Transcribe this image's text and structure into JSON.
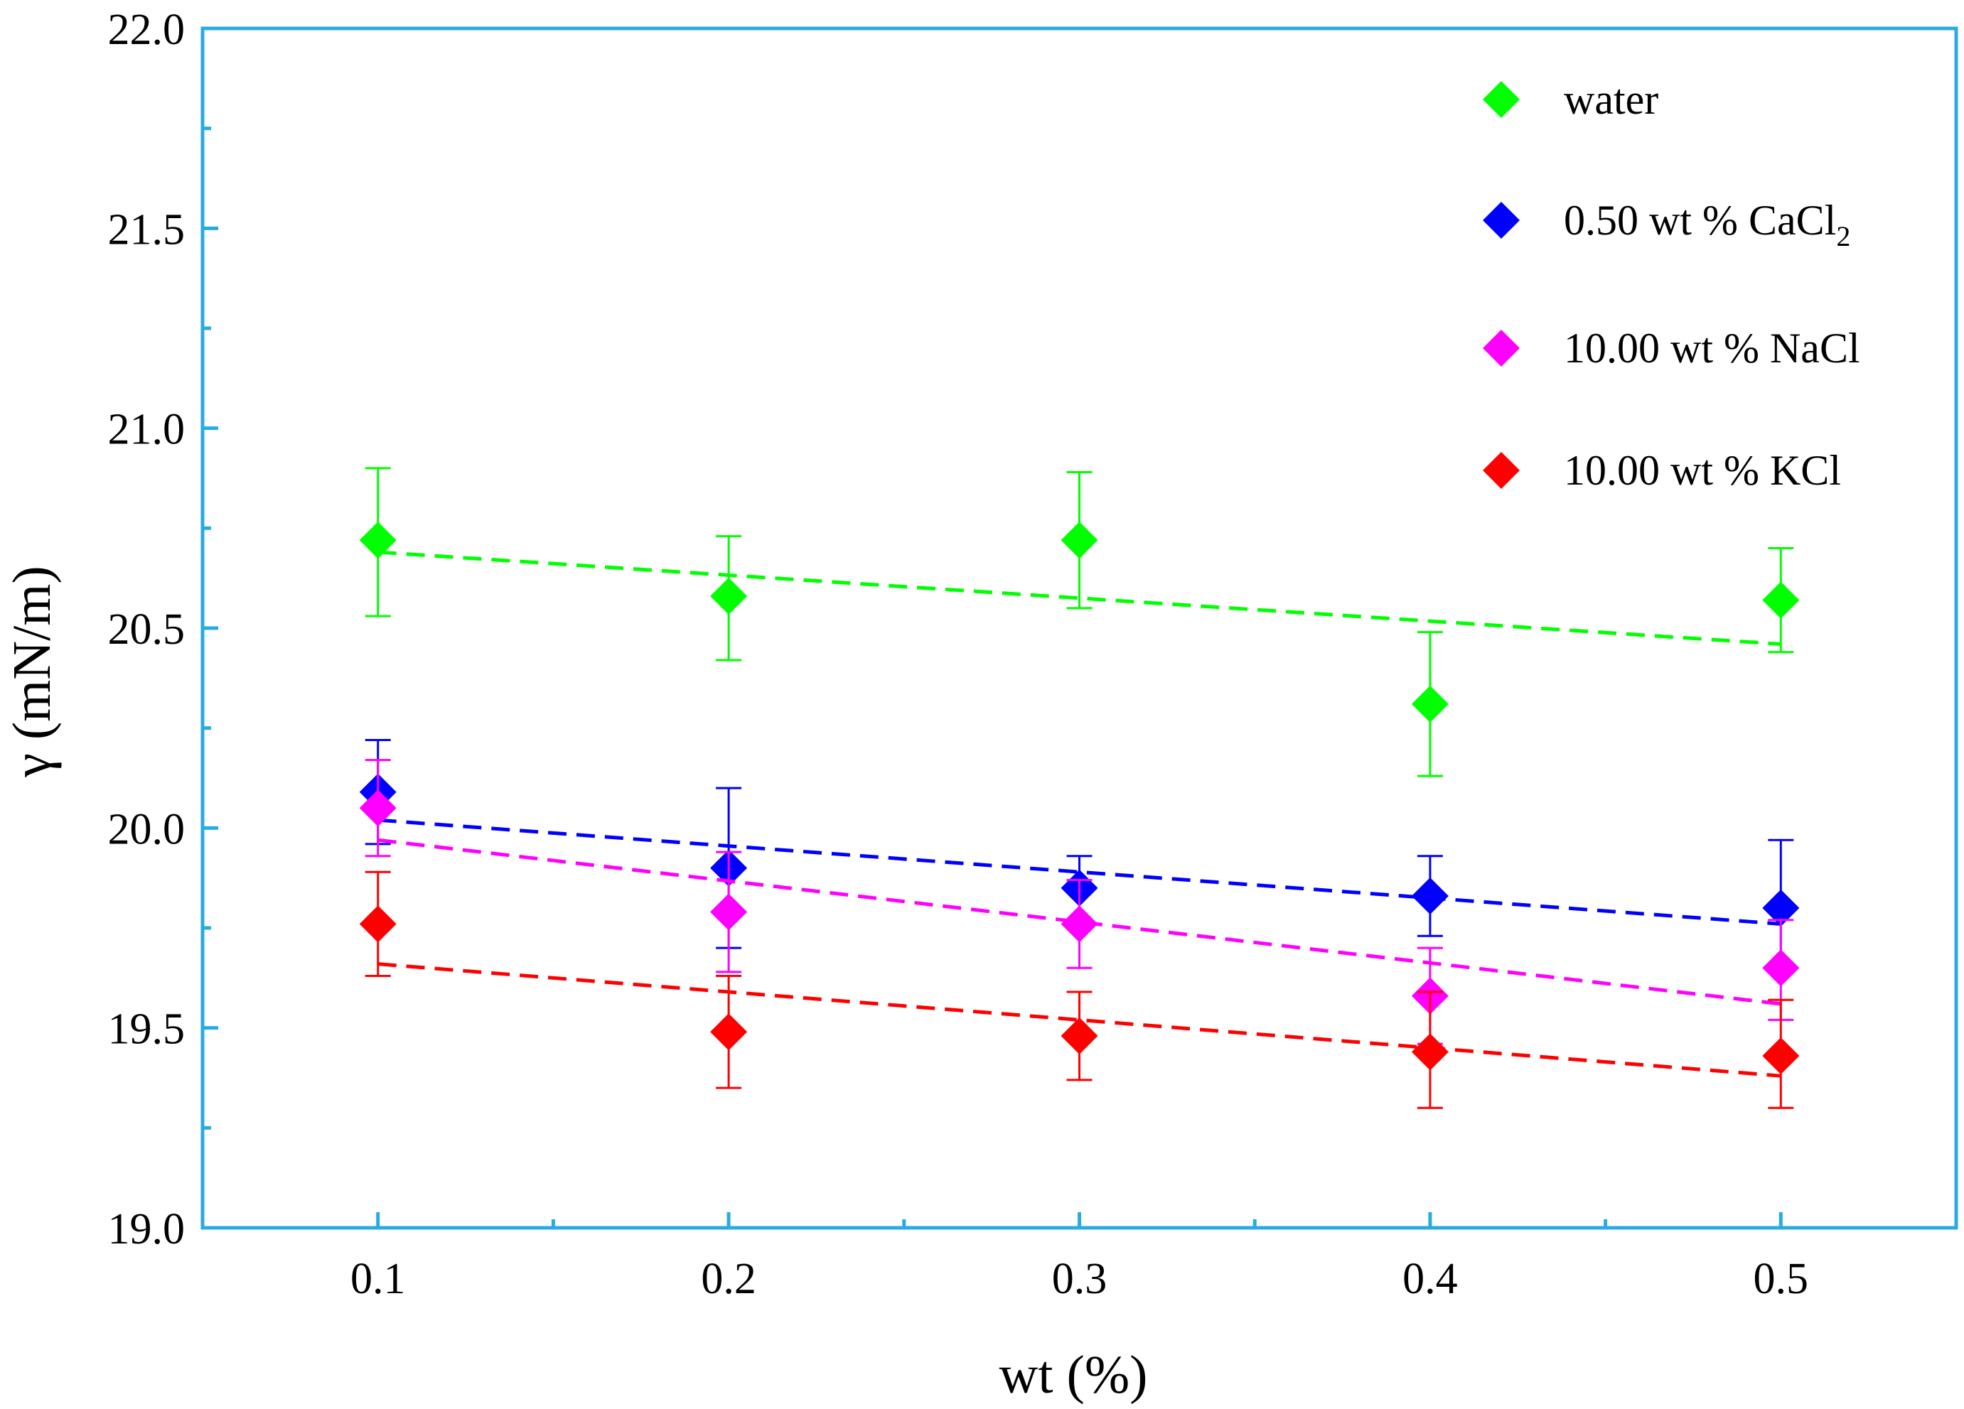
{
  "chart_data": {
    "type": "scatter",
    "title": "",
    "xlabel": "wt (%)",
    "ylabel": "γ (mN/m)",
    "xlim": [
      0.05,
      0.55
    ],
    "ylim": [
      19.0,
      22.0
    ],
    "x_ticks": [
      0.1,
      0.2,
      0.3,
      0.4,
      0.5
    ],
    "x_tick_labels": [
      "0.1",
      "0.2",
      "0.3",
      "0.4",
      "0.5"
    ],
    "y_ticks": [
      19.0,
      19.5,
      20.0,
      20.5,
      21.0,
      21.5,
      22.0
    ],
    "y_tick_labels": [
      "19.0",
      "19.5",
      "20.0",
      "20.5",
      "21.0",
      "21.5",
      "22.0"
    ],
    "grid": false,
    "legend_position": "top-right",
    "axis_color": "#29abe2",
    "series": [
      {
        "name": "water",
        "legend_main": "water",
        "legend_sub": "",
        "color": "#00ff00",
        "marker": "diamond",
        "x": [
          0.1,
          0.2,
          0.3,
          0.4,
          0.5
        ],
        "y": [
          20.72,
          20.58,
          20.72,
          20.31,
          20.57
        ],
        "err_upper": [
          20.9,
          20.73,
          20.89,
          20.49,
          20.7
        ],
        "err_lower": [
          20.53,
          20.42,
          20.55,
          20.13,
          20.44
        ],
        "fit": {
          "x": [
            0.1,
            0.5
          ],
          "y": [
            20.69,
            20.46
          ]
        }
      },
      {
        "name": "0.50 wt % CaCl2",
        "legend_main": "0.50 wt % CaCl",
        "legend_sub": "2",
        "color": "#0000ff",
        "marker": "diamond",
        "x": [
          0.1,
          0.2,
          0.3,
          0.4,
          0.5
        ],
        "y": [
          20.09,
          19.9,
          19.85,
          19.83,
          19.8
        ],
        "err_upper": [
          20.22,
          20.1,
          19.93,
          19.93,
          19.97
        ],
        "err_lower": [
          19.96,
          19.7,
          19.77,
          19.73,
          19.64
        ],
        "fit": {
          "x": [
            0.1,
            0.5
          ],
          "y": [
            20.02,
            19.76
          ]
        }
      },
      {
        "name": "10.00 wt % NaCl",
        "legend_main": "10.00 wt % NaCl",
        "legend_sub": "",
        "color": "#ff00ff",
        "marker": "diamond",
        "x": [
          0.1,
          0.2,
          0.3,
          0.4,
          0.5
        ],
        "y": [
          20.05,
          19.79,
          19.76,
          19.58,
          19.65
        ],
        "err_upper": [
          20.17,
          19.94,
          19.87,
          19.7,
          19.77
        ],
        "err_lower": [
          19.93,
          19.64,
          19.65,
          19.46,
          19.52
        ],
        "fit": {
          "x": [
            0.1,
            0.5
          ],
          "y": [
            19.97,
            19.56
          ]
        }
      },
      {
        "name": "10.00 wt % KCl",
        "legend_main": "10.00 wt % KCl",
        "legend_sub": "",
        "color": "#ff0000",
        "marker": "diamond",
        "x": [
          0.1,
          0.2,
          0.3,
          0.4,
          0.5
        ],
        "y": [
          19.76,
          19.49,
          19.48,
          19.44,
          19.43
        ],
        "err_upper": [
          19.89,
          19.63,
          19.59,
          19.59,
          19.57
        ],
        "err_lower": [
          19.63,
          19.35,
          19.37,
          19.3,
          19.3
        ],
        "fit": {
          "x": [
            0.1,
            0.5
          ],
          "y": [
            19.66,
            19.38
          ]
        }
      }
    ]
  }
}
